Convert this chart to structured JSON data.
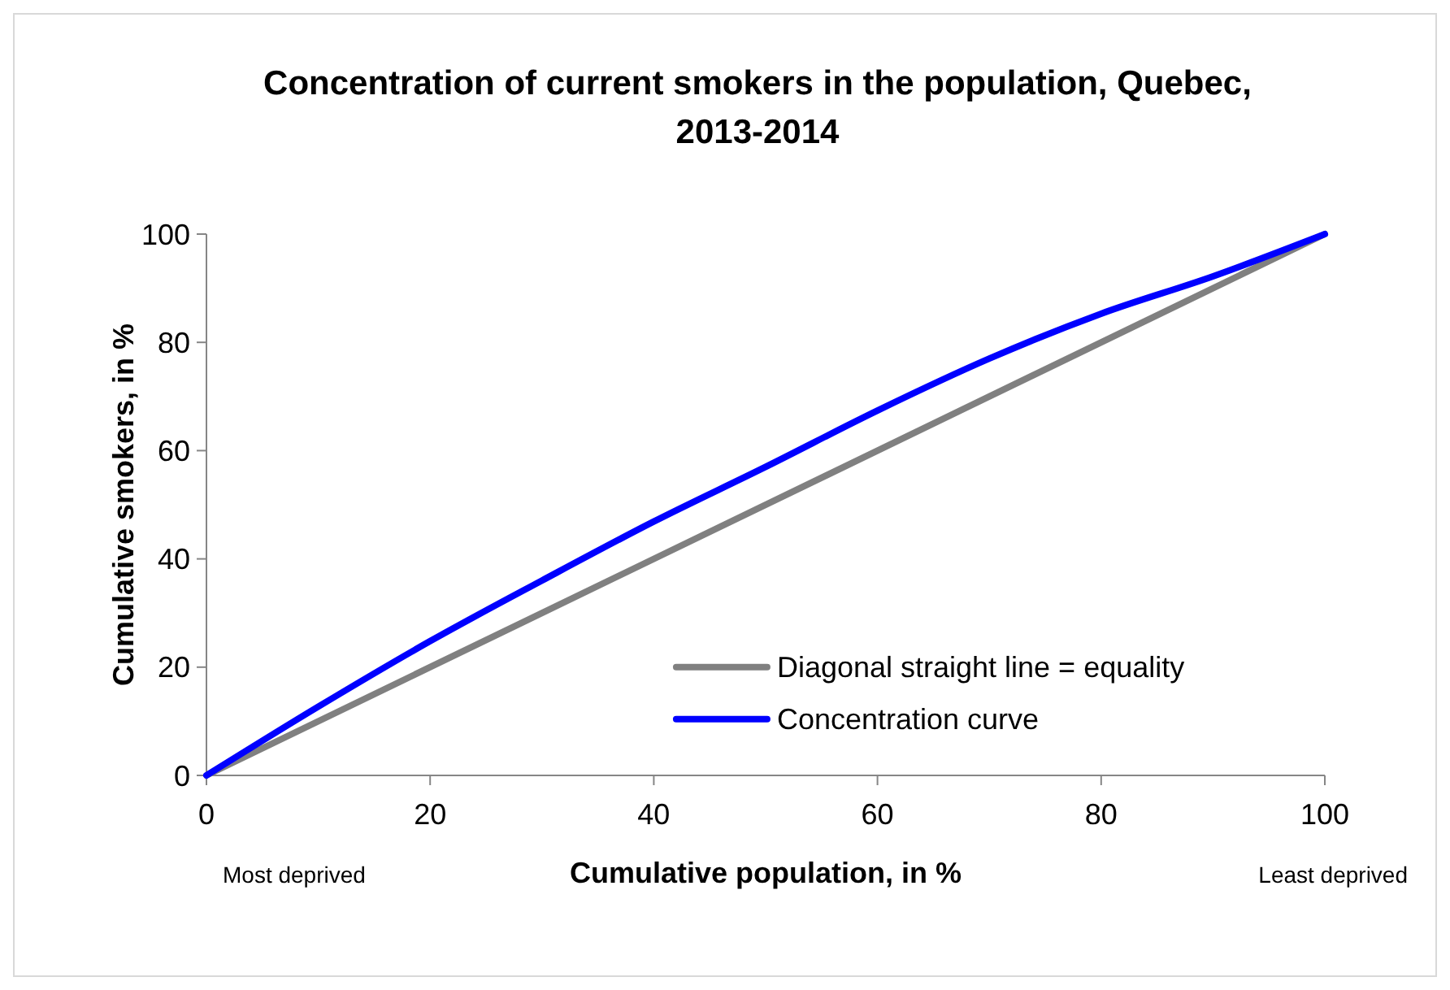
{
  "chart_data": {
    "type": "line",
    "title": "Concentration of current smokers in the population, Quebec, 2013-2014",
    "xlabel": "Cumulative population, in %",
    "ylabel": "Cumulative smokers, in %",
    "xlim": [
      0,
      100
    ],
    "ylim": [
      0,
      100
    ],
    "xticks": [
      0,
      20,
      40,
      60,
      80,
      100
    ],
    "yticks": [
      0,
      20,
      40,
      60,
      80,
      100
    ],
    "grid": false,
    "legend": "bottom right",
    "marker": "none",
    "line_style": "solid",
    "annotations": [
      "Most deprived",
      "Least deprived"
    ],
    "series": [
      {
        "name": "Diagonal straight line = equality",
        "color": "#808080",
        "x": [
          0,
          100
        ],
        "values": [
          0,
          100
        ]
      },
      {
        "name": "Concentration curve",
        "color": "#0000ff",
        "x": [
          0,
          10,
          20,
          30,
          40,
          50,
          60,
          70,
          80,
          90,
          100
        ],
        "values": [
          0,
          12.7,
          24.8,
          36,
          46.9,
          57,
          67.4,
          77,
          85.3,
          92.2,
          100
        ]
      }
    ]
  }
}
